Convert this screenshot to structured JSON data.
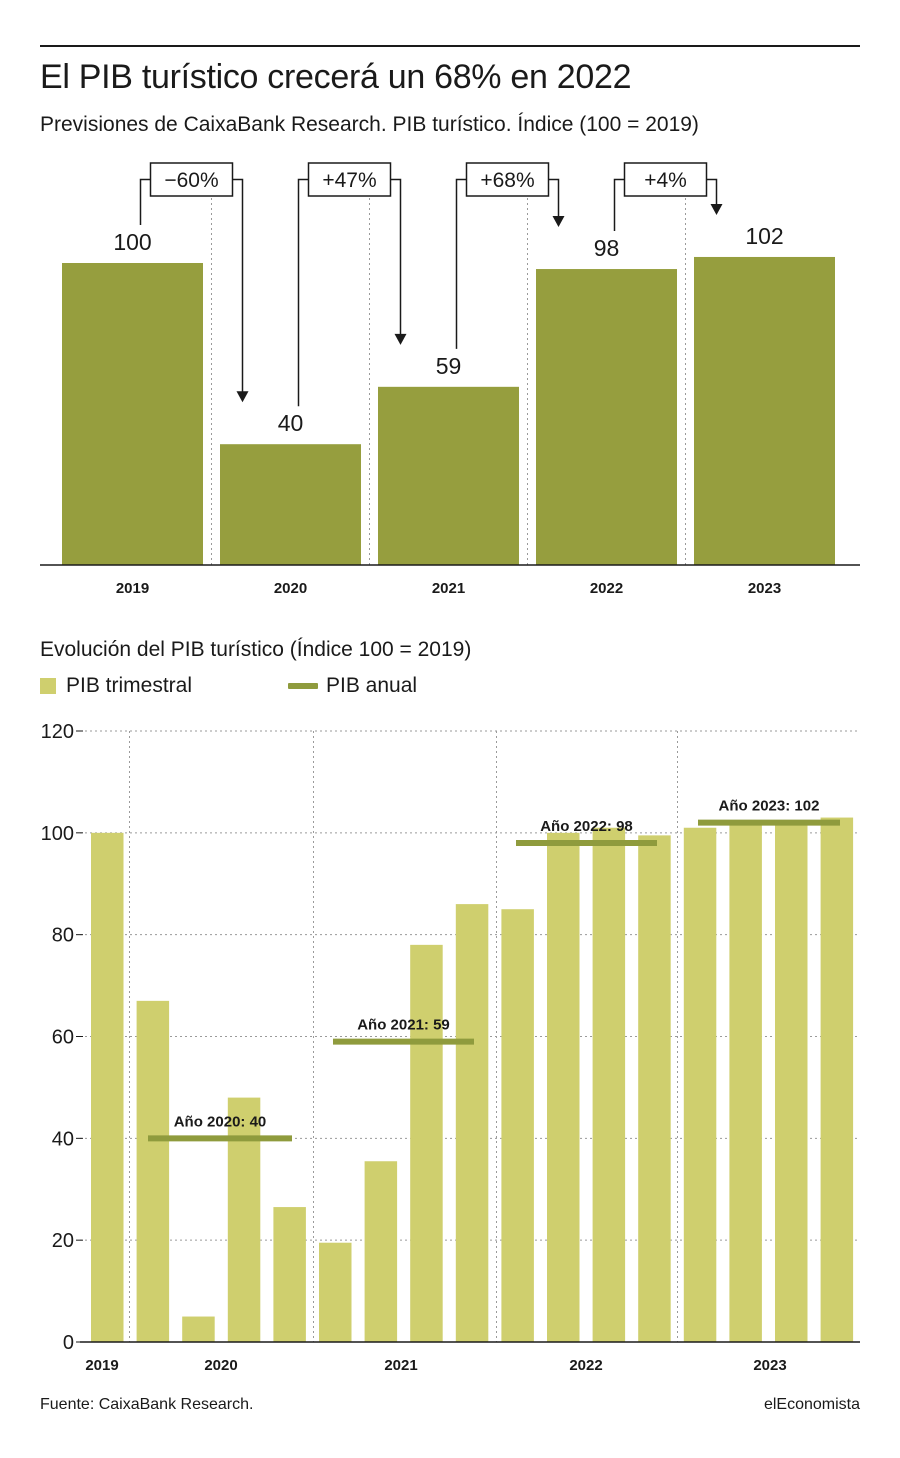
{
  "header": {
    "title": "El PIB turístico crecerá un 68% en 2022",
    "subtitle": "Previsiones de CaixaBank Research. PIB turístico. Índice (100 = 2019)"
  },
  "chart_data": [
    {
      "type": "bar",
      "categories": [
        "2019",
        "2020",
        "2021",
        "2022",
        "2023"
      ],
      "values": [
        100,
        40,
        59,
        98,
        102
      ],
      "value_labels": [
        "100",
        "40",
        "59",
        "98",
        "102"
      ],
      "changes": [
        "−60%",
        "+47%",
        "+68%",
        "+4%"
      ],
      "ylim": [
        0,
        100
      ],
      "bar_color": "#969e3e"
    },
    {
      "type": "bar",
      "title": "Evolución del PIB turístico (Índice 100 = 2019)",
      "legend": {
        "bars": "PIB trimestral",
        "line": "PIB anual"
      },
      "year_labels": [
        "2019",
        "2020",
        "2021",
        "2022",
        "2023"
      ],
      "quarterly_values": [
        100,
        67,
        5,
        48,
        26.5,
        19.5,
        35.5,
        78,
        86,
        85,
        100,
        101,
        99.5,
        101,
        102.5,
        102.5,
        103
      ],
      "annual": [
        {
          "label": "Año 2020: 40",
          "value": 40
        },
        {
          "label": "Año 2021: 59",
          "value": 59
        },
        {
          "label": "Año 2022: 98",
          "value": 98
        },
        {
          "label": "Año 2023: 102",
          "value": 102
        }
      ],
      "yticks": [
        "0",
        "20",
        "40",
        "60",
        "80",
        "100",
        "120"
      ],
      "ylim": [
        0,
        120
      ],
      "bar_color": "#cfcf6e",
      "line_color": "#8f9b3d"
    }
  ],
  "footer": {
    "source": "Fuente: CaixaBank Research.",
    "brand": "elEconomista"
  }
}
